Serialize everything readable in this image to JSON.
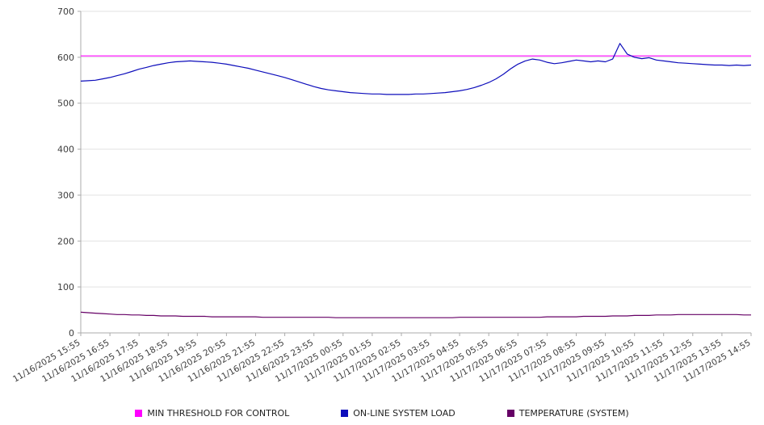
{
  "chart_data": {
    "type": "line",
    "title": "",
    "xlabel": "",
    "ylabel": "",
    "ylim": [
      0,
      700
    ],
    "yticks": [
      0,
      100,
      200,
      300,
      400,
      500,
      600,
      700
    ],
    "grid": "horizontal",
    "legend_position": "bottom",
    "x_labels": [
      "11/16/2025 15:55",
      "11/16/2025 16:55",
      "11/16/2025 17:55",
      "11/16/2025 18:55",
      "11/16/2025 19:55",
      "11/16/2025 20:55",
      "11/16/2025 21:55",
      "11/16/2025 22:55",
      "11/16/2025 23:55",
      "11/17/2025 00:55",
      "11/17/2025 01:55",
      "11/17/2025 02:55",
      "11/17/2025 03:55",
      "11/17/2025 04:55",
      "11/17/2025 05:55",
      "11/17/2025 06:55",
      "11/17/2025 07:55",
      "11/17/2025 08:55",
      "11/17/2025 09:55",
      "11/17/2025 10:55",
      "11/17/2025 11:55",
      "11/17/2025 12:55",
      "11/17/2025 13:55",
      "11/17/2025 14:55"
    ],
    "series": [
      {
        "name": "MIN THRESHOLD FOR CONTROL",
        "color": "#ff00ff",
        "values": [
          603,
          603
        ]
      },
      {
        "name": "ON-LINE SYSTEM LOAD",
        "color": "#0d0dbb",
        "values": [
          548,
          549,
          550,
          553,
          556,
          560,
          564,
          569,
          574,
          578,
          582,
          585,
          588,
          590,
          591,
          592,
          591,
          590,
          589,
          587,
          585,
          582,
          579,
          576,
          572,
          568,
          564,
          560,
          556,
          551,
          546,
          541,
          536,
          532,
          529,
          527,
          525,
          523,
          522,
          521,
          520,
          520,
          519,
          519,
          519,
          519,
          520,
          520,
          521,
          522,
          523,
          525,
          527,
          530,
          534,
          539,
          545,
          553,
          563,
          575,
          585,
          592,
          596,
          594,
          589,
          586,
          588,
          591,
          594,
          592,
          590,
          592,
          590,
          596,
          630,
          607,
          600,
          597,
          599,
          594,
          592,
          590,
          588,
          587,
          586,
          585,
          584,
          583,
          583,
          582,
          583,
          582,
          583
        ]
      },
      {
        "name": "TEMPERATURE (SYSTEM)",
        "color": "#660066",
        "values": [
          45,
          44,
          43,
          42,
          41,
          40,
          40,
          39,
          39,
          38,
          38,
          37,
          37,
          37,
          36,
          36,
          36,
          36,
          35,
          35,
          35,
          35,
          35,
          35,
          35,
          34,
          34,
          34,
          34,
          34,
          34,
          34,
          34,
          34,
          34,
          33,
          33,
          33,
          33,
          33,
          33,
          33,
          33,
          33,
          33,
          33,
          33,
          33,
          33,
          33,
          33,
          33,
          34,
          34,
          34,
          34,
          34,
          34,
          34,
          34,
          34,
          34,
          34,
          34,
          35,
          35,
          35,
          35,
          35,
          36,
          36,
          36,
          36,
          37,
          37,
          37,
          38,
          38,
          38,
          39,
          39,
          39,
          40,
          40,
          40,
          40,
          40,
          40,
          40,
          40,
          40,
          39,
          39
        ]
      }
    ]
  }
}
